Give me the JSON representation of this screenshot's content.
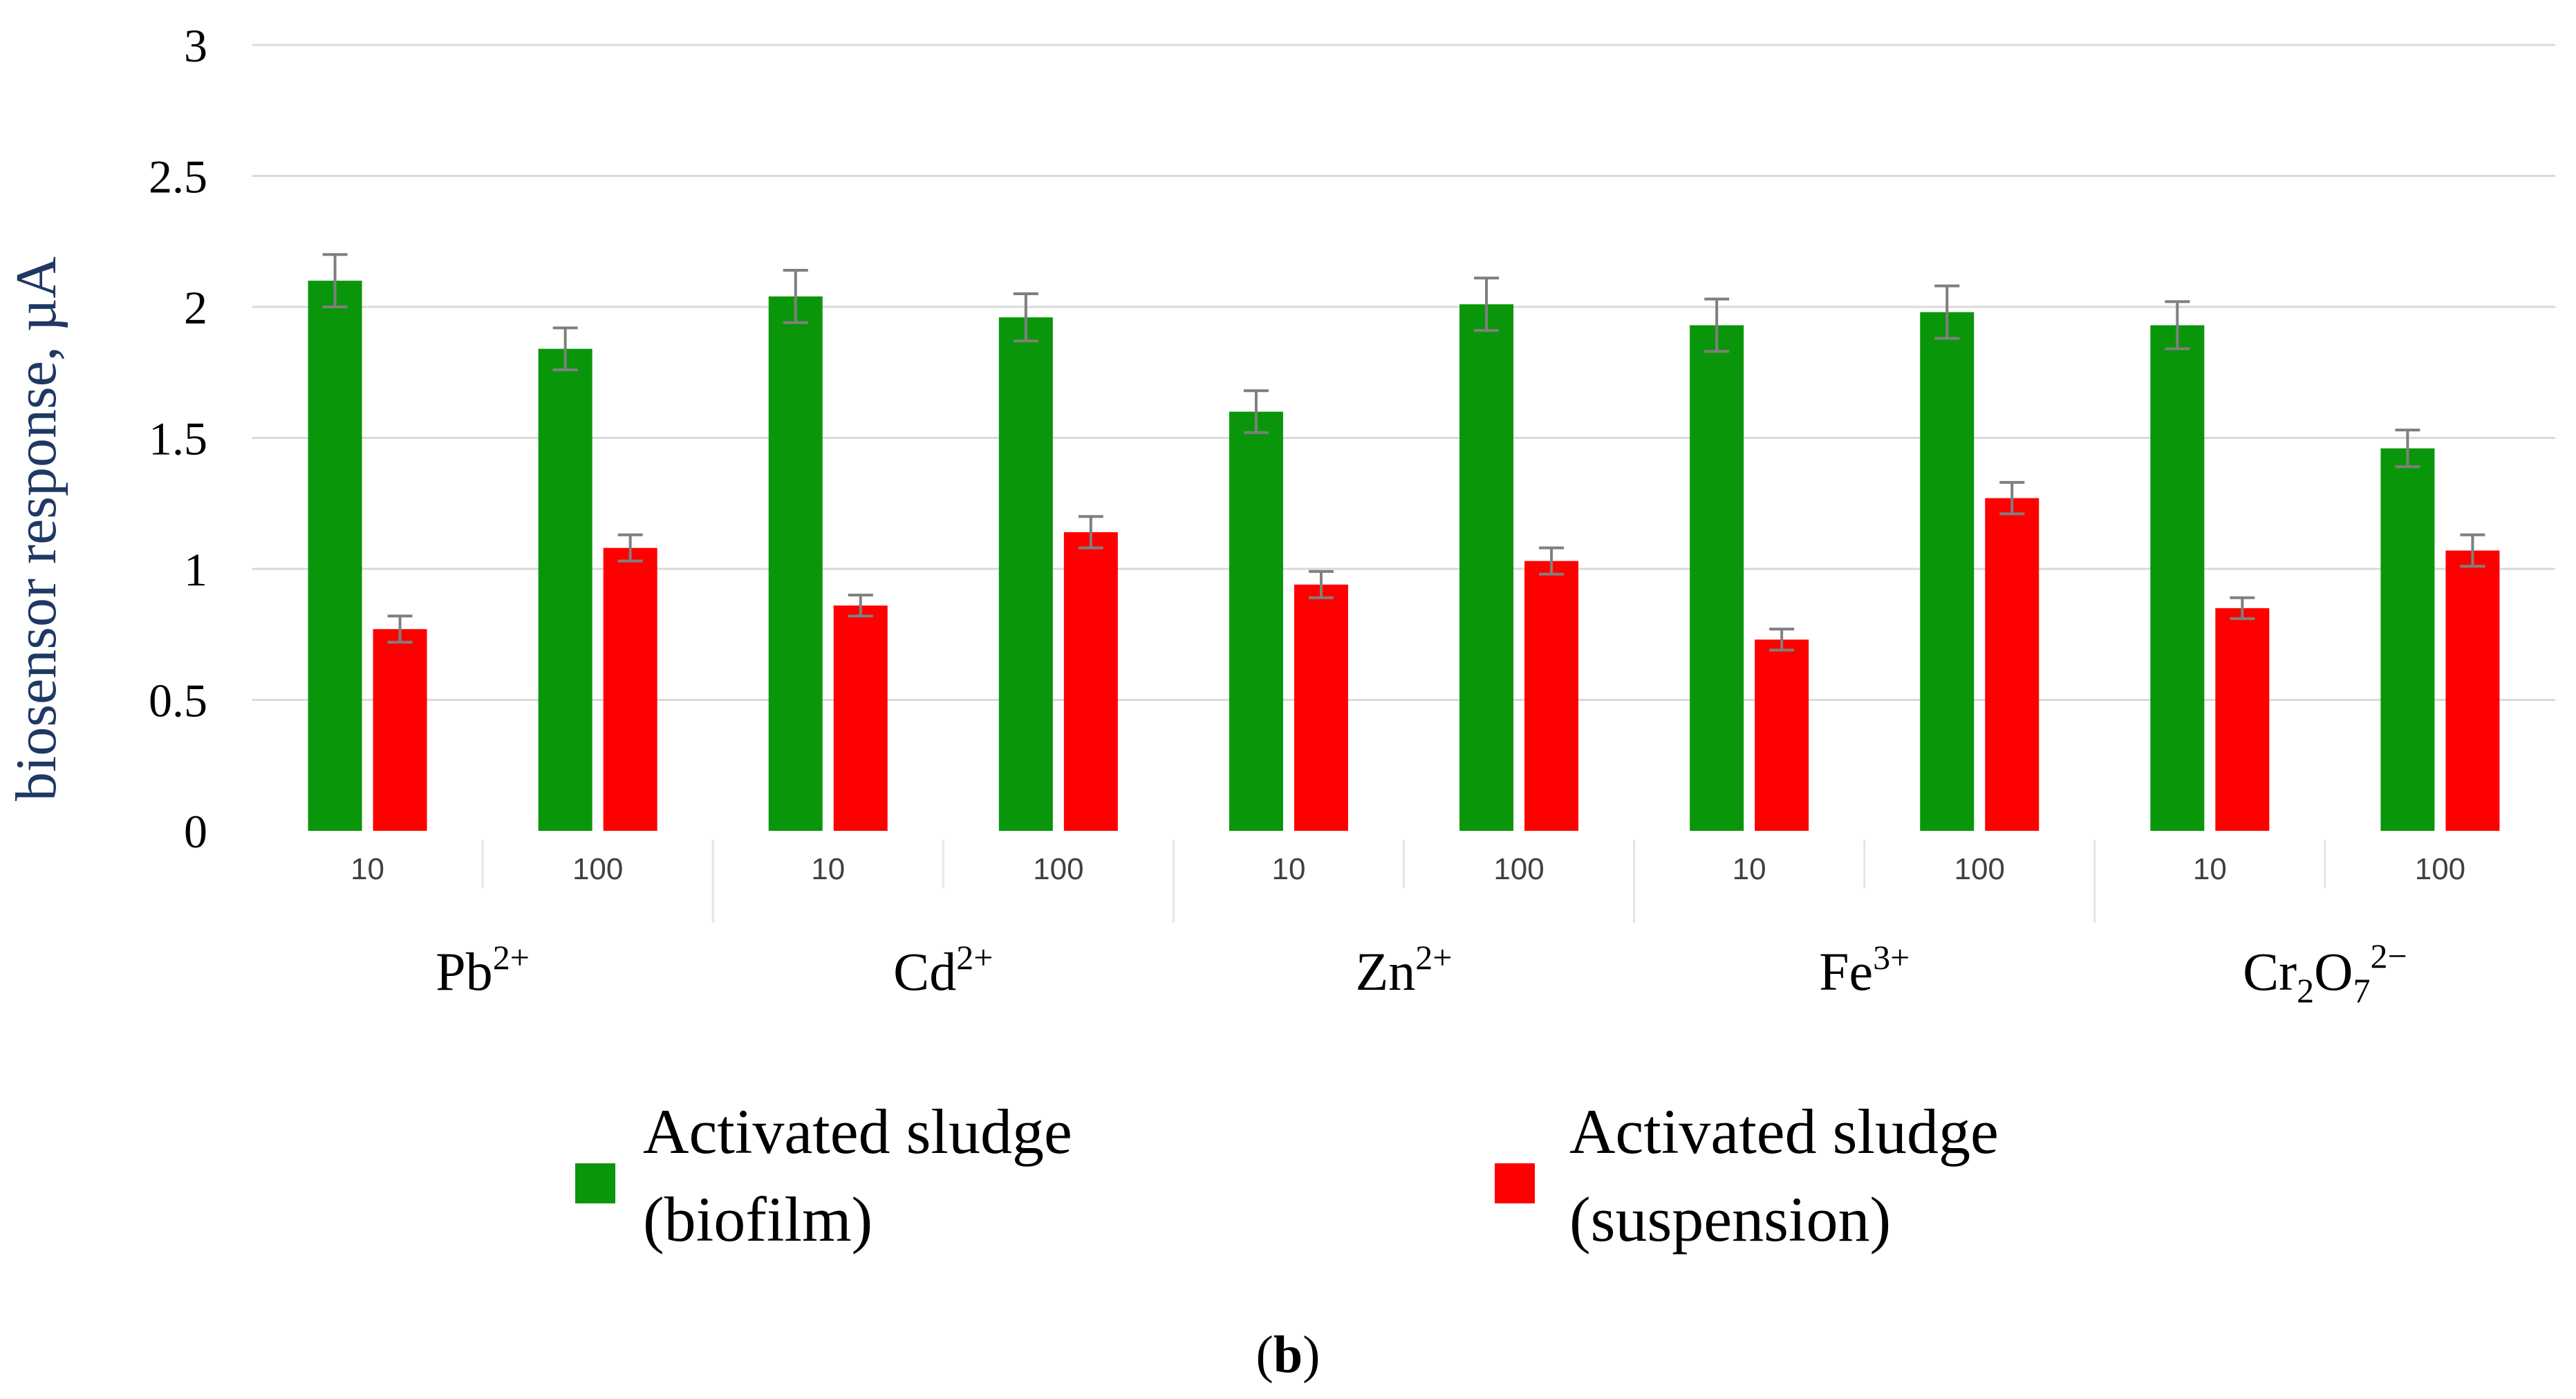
{
  "chart_data": {
    "type": "bar",
    "ylabel": "biosensor response, µA",
    "ylim": [
      0,
      3
    ],
    "yticks": [
      0,
      0.5,
      1,
      1.5,
      2,
      2.5,
      3
    ],
    "ytick_labels": [
      "0",
      "0.5",
      "1",
      "1.5",
      "2",
      "2.5",
      "3"
    ],
    "grid": "horizontal",
    "groups": [
      {
        "ion": "Pb",
        "charge": "2+",
        "subcategories": [
          "10",
          "100"
        ]
      },
      {
        "ion": "Cd",
        "charge": "2+",
        "subcategories": [
          "10",
          "100"
        ]
      },
      {
        "ion": "Zn",
        "charge": "2+",
        "subcategories": [
          "10",
          "100"
        ]
      },
      {
        "ion": "Fe",
        "charge": "3+",
        "subcategories": [
          "10",
          "100"
        ]
      },
      {
        "ion_parts": [
          "Cr",
          "2",
          "O",
          "7"
        ],
        "charge": "2−",
        "subcategories": [
          "10",
          "100"
        ]
      }
    ],
    "series": [
      {
        "name_line1": "Activated sludge",
        "name_line2": "(biofilm)",
        "color": "#0a960a",
        "values": [
          2.1,
          1.84,
          2.04,
          1.96,
          1.6,
          2.01,
          1.93,
          1.98,
          1.93,
          1.46
        ],
        "errors": [
          0.1,
          0.08,
          0.1,
          0.09,
          0.08,
          0.1,
          0.1,
          0.1,
          0.09,
          0.07
        ]
      },
      {
        "name_line1": "Activated sludge",
        "name_line2": "(suspension)",
        "color": "#ff0000",
        "values": [
          0.77,
          1.08,
          0.86,
          1.14,
          0.94,
          1.03,
          0.73,
          1.27,
          0.85,
          1.07
        ],
        "errors": [
          0.05,
          0.05,
          0.04,
          0.06,
          0.05,
          0.05,
          0.04,
          0.06,
          0.04,
          0.06
        ]
      }
    ],
    "legend": "bottom",
    "caption_open": "(",
    "caption_letter": "b",
    "caption_close": ")"
  }
}
